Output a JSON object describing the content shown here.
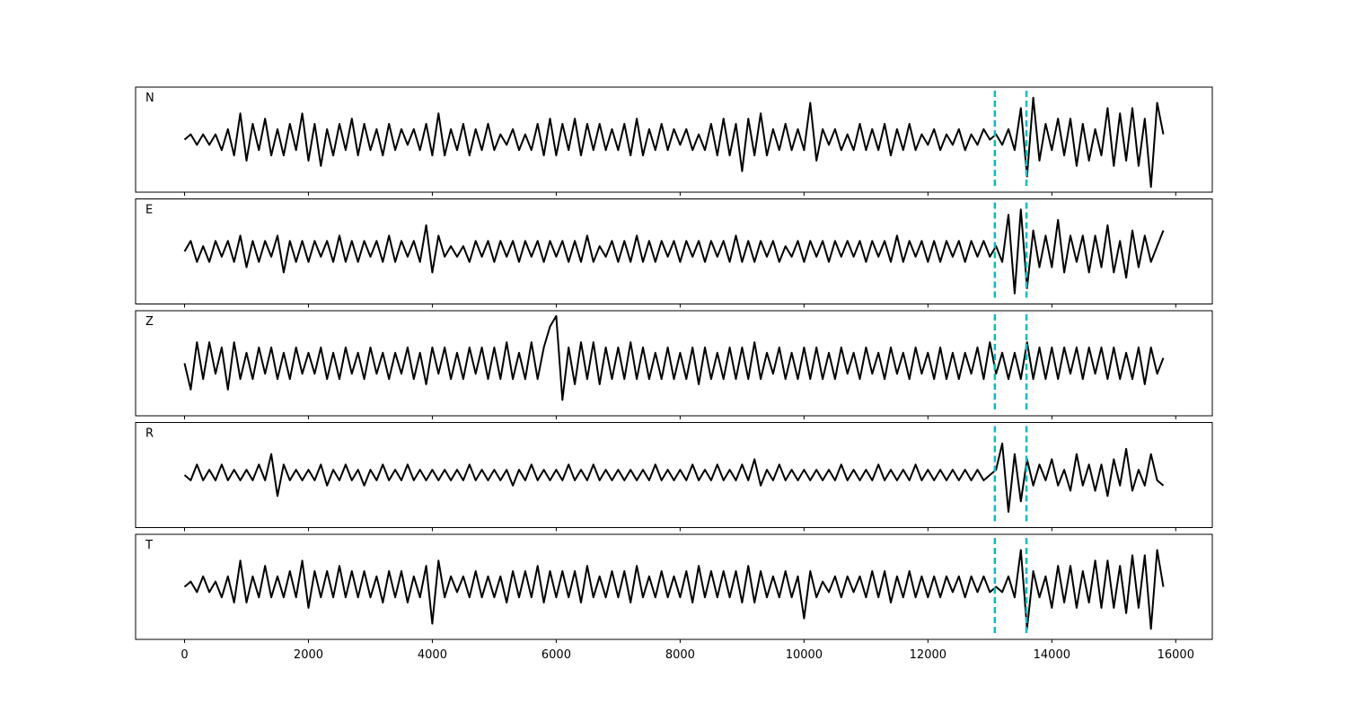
{
  "chart_data": {
    "type": "line",
    "x": [
      0,
      100,
      200,
      300,
      400,
      500,
      600,
      700,
      800,
      900,
      1000,
      1100,
      1200,
      1300,
      1400,
      1500,
      1600,
      1700,
      1800,
      1900,
      2000,
      2100,
      2200,
      2300,
      2400,
      2500,
      2600,
      2700,
      2800,
      2900,
      3000,
      3100,
      3200,
      3300,
      3400,
      3500,
      3600,
      3700,
      3800,
      3900,
      4000,
      4100,
      4200,
      4300,
      4400,
      4500,
      4600,
      4700,
      4800,
      4900,
      5000,
      5100,
      5200,
      5300,
      5400,
      5500,
      5600,
      5700,
      5800,
      5900,
      6000,
      6100,
      6200,
      6300,
      6400,
      6500,
      6600,
      6700,
      6800,
      6900,
      7000,
      7100,
      7200,
      7300,
      7400,
      7500,
      7600,
      7700,
      7800,
      7900,
      8000,
      8100,
      8200,
      8300,
      8400,
      8500,
      8600,
      8700,
      8800,
      8900,
      9000,
      9100,
      9200,
      9300,
      9400,
      9500,
      9600,
      9700,
      9800,
      9900,
      10000,
      10100,
      10200,
      10300,
      10400,
      10500,
      10600,
      10700,
      10800,
      10900,
      11000,
      11100,
      11200,
      11300,
      11400,
      11500,
      11600,
      11700,
      11800,
      11900,
      12000,
      12100,
      12200,
      12300,
      12400,
      12500,
      12600,
      12700,
      12800,
      12900,
      13000,
      13100,
      13200,
      13300,
      13400,
      13500,
      13600,
      13700,
      13800,
      13900,
      14000,
      14100,
      14200,
      14300,
      14400,
      14500,
      14600,
      14700,
      14800,
      14900,
      15000,
      15100,
      15200,
      15300,
      15400,
      15500,
      15600,
      15700,
      15800
    ],
    "series": [
      {
        "name": "N",
        "color": "#000000",
        "values": [
          0,
          1,
          -1,
          1,
          -1,
          1,
          -2,
          2,
          -3,
          5,
          -4,
          3,
          -2,
          4,
          -3,
          2,
          -3,
          3,
          -2,
          5,
          -4,
          3,
          -5,
          2,
          -3,
          3,
          -2,
          4,
          -3,
          3,
          -2,
          2,
          -3,
          3,
          -2,
          2,
          -1,
          2,
          -2,
          3,
          -3,
          5,
          -3,
          2,
          -2,
          3,
          -3,
          2,
          -2,
          3,
          -2,
          1,
          -1,
          2,
          -2,
          1,
          -2,
          3,
          -3,
          4,
          -3,
          3,
          -2,
          4,
          -3,
          3,
          -2,
          3,
          -2,
          2,
          -2,
          3,
          -3,
          4,
          -3,
          2,
          -2,
          3,
          -2,
          2,
          -1,
          2,
          -2,
          1,
          -2,
          3,
          -3,
          4,
          -3,
          3,
          -6,
          4,
          -3,
          5,
          -3,
          2,
          -2,
          3,
          -2,
          2,
          -2,
          7,
          -4,
          2,
          -1,
          2,
          -2,
          1,
          -2,
          3,
          -2,
          2,
          -2,
          3,
          -3,
          2,
          -2,
          3,
          -2,
          1,
          -1,
          2,
          -2,
          1,
          -1,
          2,
          -2,
          1,
          -1,
          2,
          0,
          1,
          -1,
          2,
          -2,
          6,
          -7,
          8,
          -4,
          3,
          -2,
          4,
          -3,
          4,
          -5,
          3,
          -4,
          2,
          -3,
          6,
          -5,
          5,
          -4,
          6,
          -5,
          4,
          -9,
          7,
          1
        ]
      },
      {
        "name": "E",
        "color": "#000000",
        "values": [
          0,
          2,
          -2,
          1,
          -2,
          2,
          -1,
          2,
          -2,
          3,
          -3,
          2,
          -2,
          2,
          -1,
          3,
          -4,
          2,
          -2,
          2,
          -2,
          2,
          -1,
          2,
          -2,
          3,
          -2,
          2,
          -2,
          2,
          -1,
          2,
          -2,
          3,
          -2,
          2,
          -1,
          2,
          -2,
          5,
          -4,
          3,
          -1,
          1,
          -1,
          1,
          -2,
          2,
          -1,
          2,
          -2,
          2,
          -1,
          2,
          -2,
          2,
          -1,
          2,
          -2,
          2,
          -1,
          2,
          -2,
          2,
          -2,
          3,
          -2,
          1,
          -1,
          2,
          -2,
          2,
          -2,
          3,
          -2,
          2,
          -2,
          2,
          -1,
          2,
          -2,
          2,
          -1,
          2,
          -2,
          2,
          -1,
          2,
          -2,
          3,
          -2,
          2,
          -2,
          2,
          -1,
          2,
          -2,
          1,
          -1,
          2,
          -2,
          2,
          -1,
          2,
          -2,
          2,
          -1,
          2,
          -1,
          2,
          -2,
          2,
          -1,
          2,
          -2,
          3,
          -2,
          2,
          -1,
          2,
          -2,
          2,
          -2,
          2,
          -1,
          2,
          -2,
          2,
          -1,
          2,
          -1,
          1,
          -2,
          7,
          -8,
          8,
          -7,
          4,
          -3,
          3,
          -3,
          6,
          -4,
          3,
          -2,
          3,
          -4,
          3,
          -3,
          5,
          -4,
          2,
          -5,
          4,
          -3,
          3,
          -2,
          1,
          4
        ]
      },
      {
        "name": "Z",
        "color": "#000000",
        "values": [
          0,
          -5,
          4,
          -3,
          4,
          -2,
          3,
          -5,
          4,
          -3,
          2,
          -3,
          3,
          -2,
          3,
          -3,
          2,
          -3,
          3,
          -2,
          2,
          -2,
          3,
          -3,
          2,
          -3,
          3,
          -2,
          2,
          -3,
          3,
          -2,
          2,
          -3,
          2,
          -2,
          3,
          -3,
          2,
          -4,
          3,
          -2,
          3,
          -3,
          2,
          -3,
          3,
          -2,
          3,
          -3,
          3,
          -3,
          4,
          -3,
          2,
          -3,
          4,
          -3,
          3,
          7,
          9,
          -7,
          3,
          -4,
          4,
          -3,
          4,
          -4,
          3,
          -3,
          3,
          -3,
          4,
          -3,
          3,
          -3,
          2,
          -3,
          3,
          -3,
          2,
          -3,
          3,
          -4,
          3,
          -3,
          2,
          -3,
          3,
          -3,
          3,
          -3,
          4,
          -3,
          2,
          -2,
          3,
          -3,
          2,
          -3,
          3,
          -3,
          3,
          -3,
          2,
          -3,
          3,
          -2,
          2,
          -3,
          3,
          -2,
          2,
          -3,
          3,
          -2,
          2,
          -3,
          3,
          -2,
          2,
          -3,
          3,
          -3,
          2,
          -3,
          2,
          -2,
          3,
          -3,
          4,
          -2,
          2,
          -3,
          2,
          -3,
          4,
          -3,
          3,
          -3,
          3,
          -3,
          3,
          -2,
          3,
          -3,
          3,
          -2,
          3,
          -3,
          3,
          -3,
          2,
          -3,
          3,
          -4,
          3,
          -2,
          1
        ]
      },
      {
        "name": "R",
        "color": "#000000",
        "values": [
          0,
          -1,
          2,
          -1,
          1,
          -1,
          2,
          -1,
          1,
          -1,
          1,
          -1,
          2,
          -1,
          4,
          -4,
          2,
          -1,
          1,
          -1,
          1,
          -1,
          2,
          -2,
          1,
          -1,
          2,
          -1,
          1,
          -2,
          1,
          -1,
          2,
          -1,
          1,
          -1,
          2,
          -1,
          1,
          -1,
          1,
          -1,
          1,
          -1,
          1,
          -1,
          2,
          -1,
          1,
          -1,
          1,
          -1,
          1,
          -2,
          1,
          -1,
          2,
          -1,
          1,
          -1,
          1,
          -1,
          2,
          -1,
          1,
          -1,
          2,
          -1,
          1,
          -1,
          1,
          -1,
          1,
          -1,
          1,
          -1,
          2,
          -1,
          1,
          -1,
          1,
          -1,
          2,
          -1,
          1,
          -1,
          2,
          -1,
          1,
          -1,
          2,
          -1,
          3,
          -2,
          1,
          -1,
          2,
          -1,
          1,
          -1,
          1,
          -1,
          1,
          -1,
          1,
          -1,
          2,
          -1,
          1,
          -1,
          1,
          -1,
          2,
          -1,
          1,
          -1,
          1,
          -1,
          2,
          -1,
          1,
          -1,
          1,
          -1,
          1,
          -1,
          1,
          -1,
          1,
          -1,
          0,
          1,
          6,
          -7,
          4,
          -5,
          3,
          -2,
          2,
          -1,
          3,
          -2,
          1,
          -3,
          4,
          -2,
          2,
          -3,
          2,
          -4,
          3,
          -2,
          5,
          -3,
          1,
          -2,
          4,
          -1,
          -2
        ]
      },
      {
        "name": "T",
        "color": "#000000",
        "values": [
          0,
          1,
          -1,
          2,
          -1,
          1,
          -2,
          2,
          -3,
          5,
          -3,
          2,
          -2,
          4,
          -2,
          2,
          -2,
          3,
          -2,
          5,
          -4,
          3,
          -2,
          3,
          -2,
          4,
          -2,
          3,
          -2,
          3,
          -2,
          2,
          -3,
          3,
          -2,
          3,
          -3,
          2,
          -2,
          4,
          -7,
          5,
          -2,
          2,
          -1,
          2,
          -2,
          3,
          -2,
          2,
          -2,
          2,
          -3,
          3,
          -2,
          3,
          -2,
          4,
          -3,
          3,
          -2,
          3,
          -2,
          3,
          -3,
          4,
          -2,
          2,
          -2,
          3,
          -2,
          3,
          -3,
          4,
          -2,
          2,
          -2,
          3,
          -2,
          2,
          -2,
          3,
          -3,
          4,
          -2,
          3,
          -2,
          3,
          -2,
          3,
          -3,
          4,
          -3,
          3,
          -2,
          2,
          -2,
          3,
          -2,
          2,
          -6,
          3,
          -2,
          1,
          -1,
          2,
          -2,
          2,
          -1,
          2,
          -2,
          3,
          -2,
          3,
          -3,
          2,
          -2,
          3,
          -2,
          2,
          -2,
          2,
          -2,
          2,
          -1,
          2,
          -2,
          2,
          -1,
          2,
          -1,
          0,
          -1,
          2,
          -2,
          7,
          -8,
          3,
          -2,
          2,
          -4,
          4,
          -3,
          4,
          -4,
          3,
          -3,
          5,
          -4,
          5,
          -4,
          4,
          -5,
          6,
          -4,
          6,
          -8,
          7,
          0
        ]
      }
    ],
    "vlines": [
      13080,
      13590
    ],
    "vline_color": "#00bfbf",
    "xlim": [
      -790,
      16590
    ],
    "xticks": [
      0,
      2000,
      4000,
      6000,
      8000,
      10000,
      12000,
      14000,
      16000
    ],
    "ylim": [
      -10,
      10
    ]
  }
}
